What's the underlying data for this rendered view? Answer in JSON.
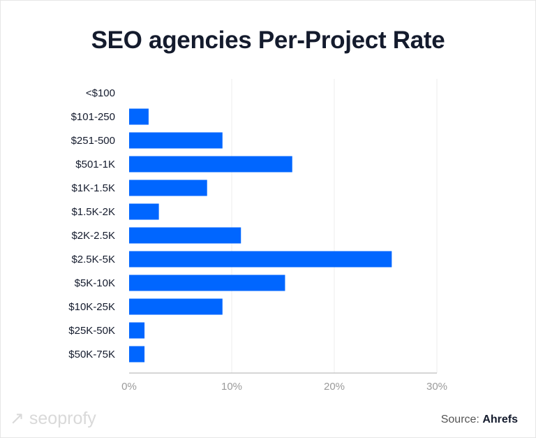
{
  "chart_data": {
    "type": "bar",
    "orientation": "horizontal",
    "title": "SEO agencies Per-Project Rate",
    "categories": [
      "<$100",
      "$101-250",
      "$251-500",
      "$501-1K",
      "$1K-1.5K",
      "$1.5K-2K",
      "$2K-2.5K",
      "$2.5K-5K",
      "$5K-10K",
      "$10K-25K",
      "$25K-50K",
      "$50K-75K"
    ],
    "values": [
      0,
      1.9,
      9.1,
      15.9,
      7.6,
      2.9,
      10.9,
      25.6,
      15.2,
      9.1,
      1.5,
      1.5
    ],
    "xlim": [
      0,
      30
    ],
    "xticks": [
      "0%",
      "10%",
      "20%",
      "30%"
    ],
    "grid": true,
    "bar_color": "#0066ff"
  },
  "footer": {
    "logo": "seoprofy",
    "source_label": "Source:",
    "source_name": "Ahrefs"
  }
}
